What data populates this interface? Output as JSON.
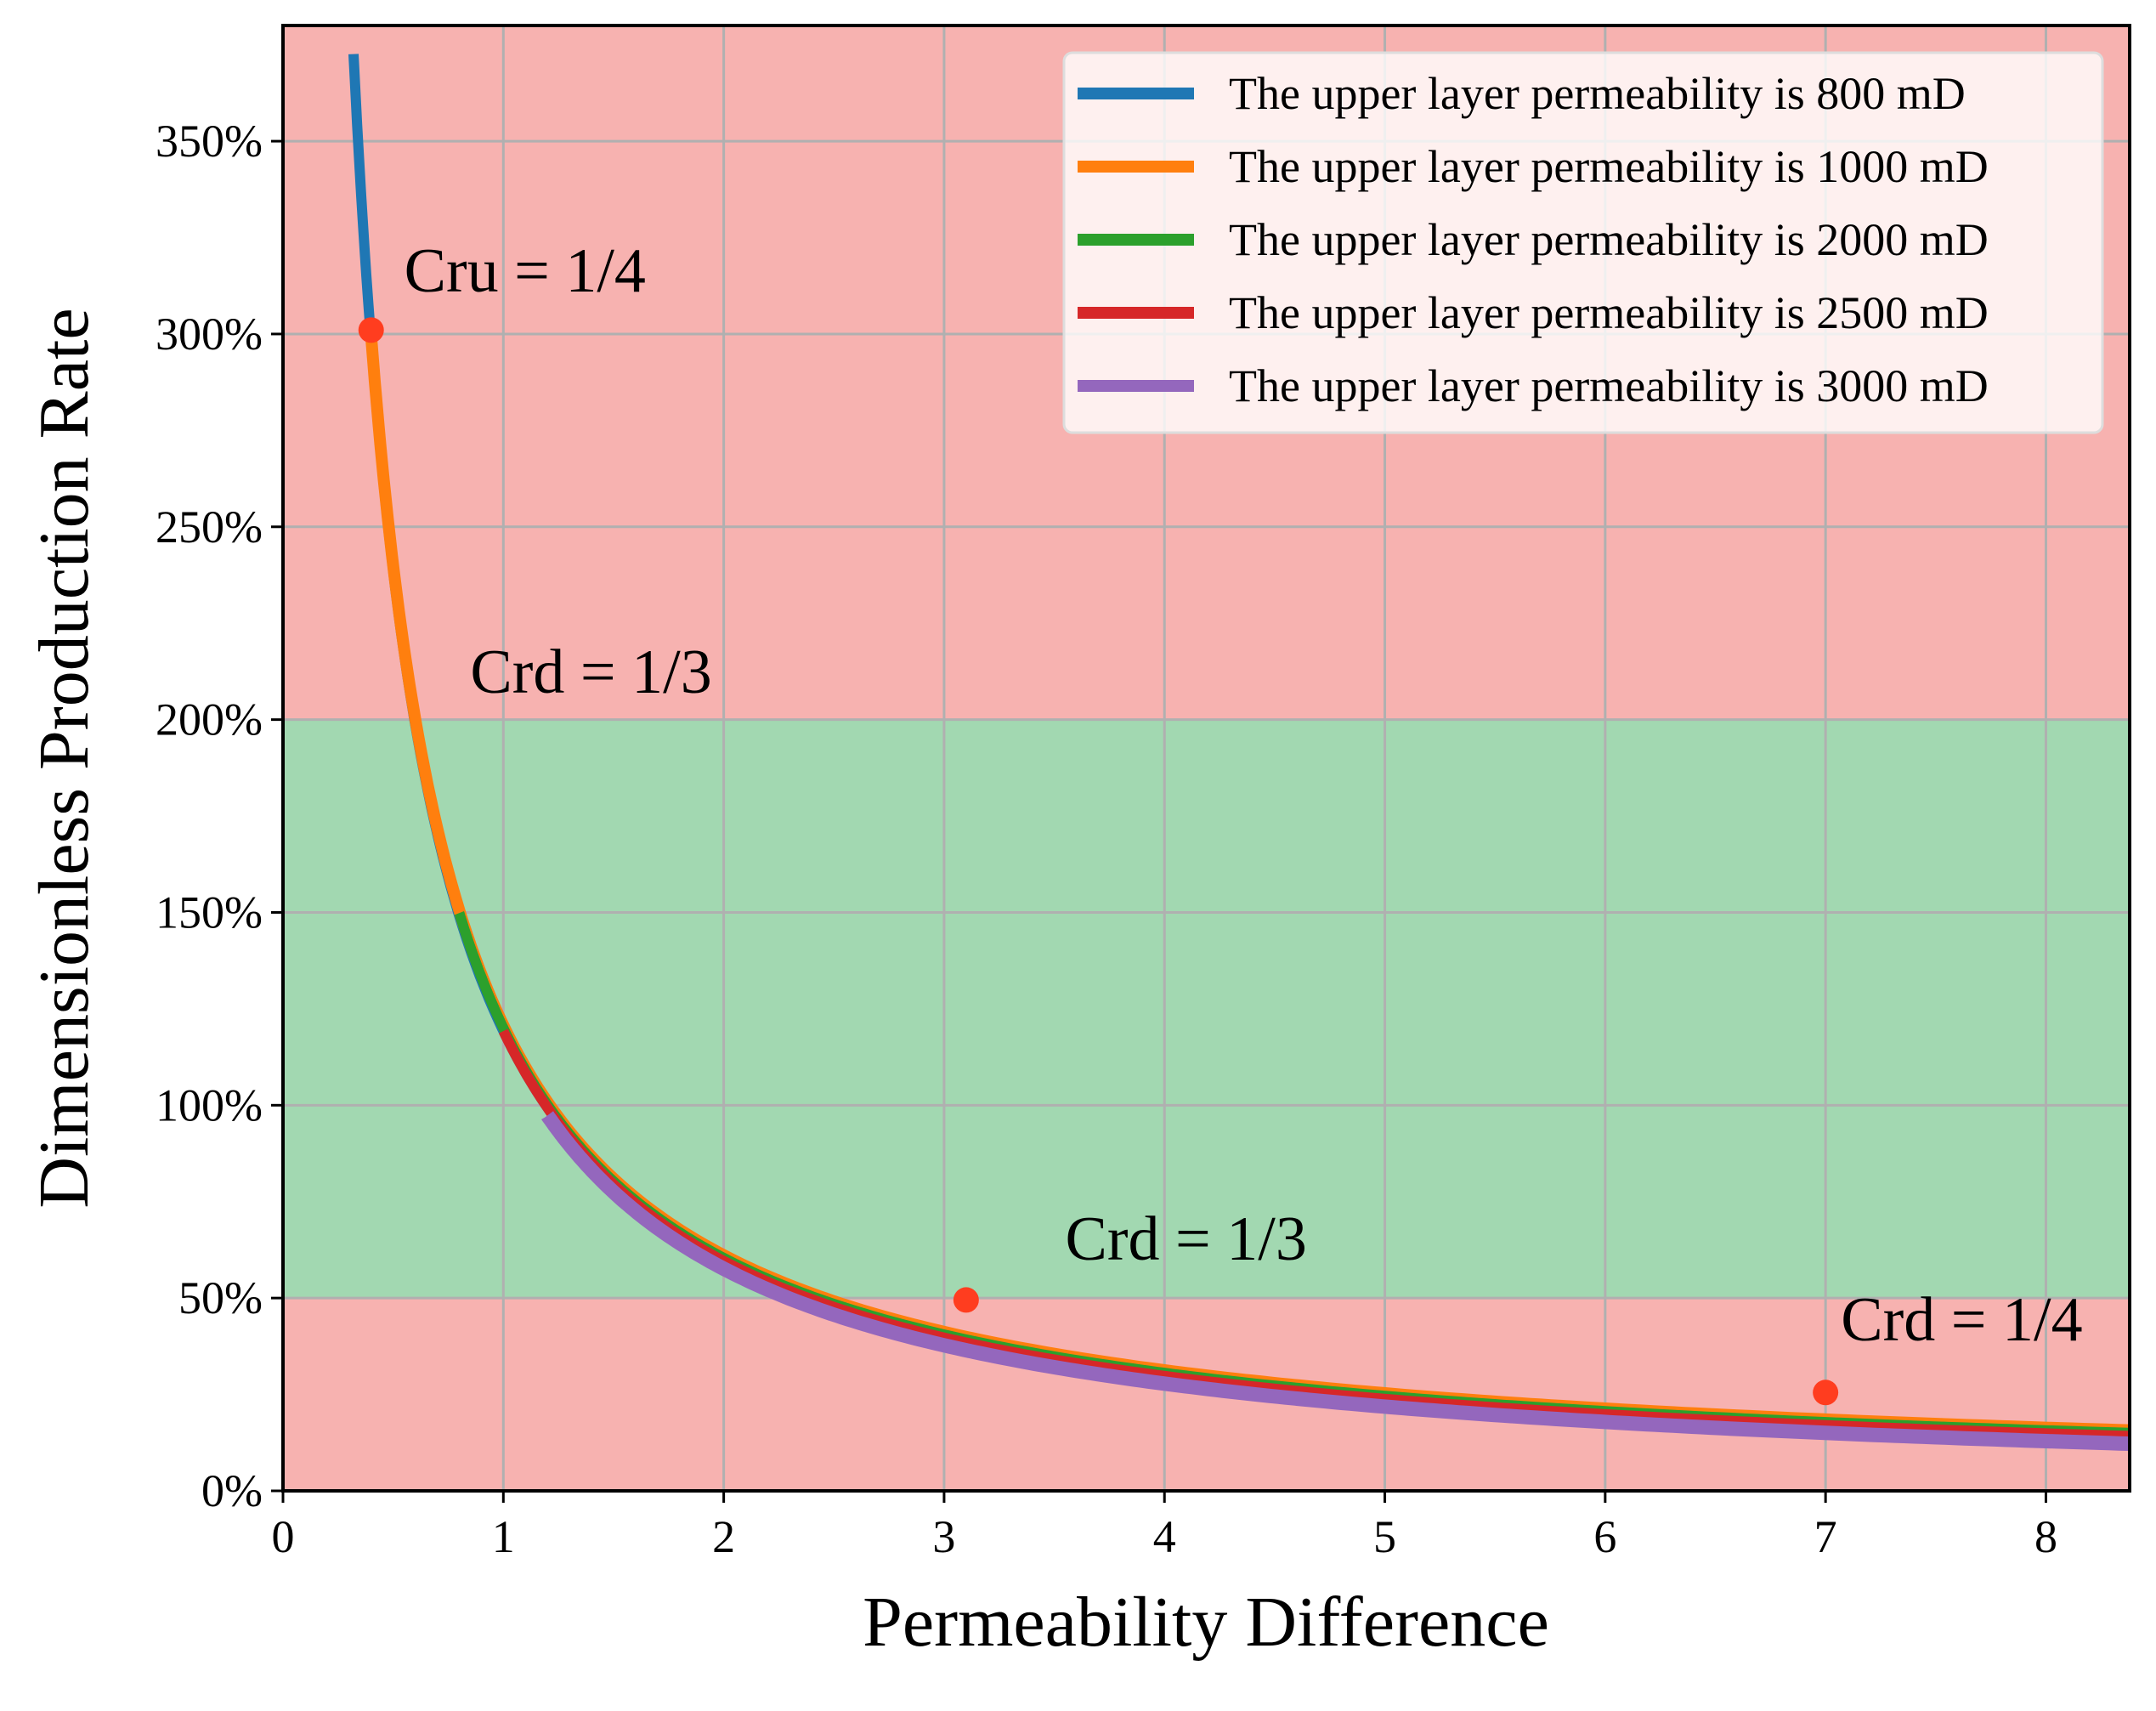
{
  "chart_data": {
    "type": "line",
    "title": "",
    "xlabel": "Permeability Difference",
    "ylabel": "Dimensionless Production Rate",
    "xlim": [
      0,
      8.38
    ],
    "ylim": [
      0,
      380
    ],
    "x_ticks": [
      0,
      1,
      2,
      3,
      4,
      5,
      6,
      7,
      8
    ],
    "x_tick_labels": [
      "0",
      "1",
      "2",
      "3",
      "4",
      "5",
      "6",
      "7",
      "8"
    ],
    "y_ticks": [
      0,
      50,
      100,
      150,
      200,
      250,
      300,
      350
    ],
    "y_tick_labels": [
      "0%",
      "50%",
      "100%",
      "150%",
      "200%",
      "250%",
      "300%",
      "350%"
    ],
    "grid": true,
    "legend_position": "top-right",
    "background_bands": [
      {
        "y_from": 200,
        "y_to": 380,
        "color": "#f7b2b0"
      },
      {
        "y_from": 50,
        "y_to": 200,
        "color": "#a2d8b1"
      },
      {
        "y_from": 0,
        "y_to": 50,
        "color": "#f7b2b0"
      }
    ],
    "series": [
      {
        "name": "The upper layer permeability is 800 mD",
        "color": "#1f77b4",
        "x_range": [
          0.32,
          8.38
        ],
        "curve_k": 1.55,
        "y_offset": 0
      },
      {
        "name": "The upper layer permeability is 1000 mD",
        "color": "#ff7f0e",
        "x_range": [
          0.4,
          8.38
        ],
        "curve_k": 1.55,
        "y_offset": 1.5
      },
      {
        "name": "The upper layer permeability is 2000 mD",
        "color": "#2ca02c",
        "x_range": [
          0.8,
          8.38
        ],
        "curve_k": 1.55,
        "y_offset": 0.8
      },
      {
        "name": "The upper layer permeability is 2500 mD",
        "color": "#d62728",
        "x_range": [
          1.0,
          8.38
        ],
        "curve_k": 1.55,
        "y_offset": 0
      },
      {
        "name": "The upper layer permeability is 3000 mD",
        "color": "#9467bd",
        "x_range": [
          1.2,
          8.38
        ],
        "curve_k": 1.55,
        "y_offset": -2
      }
    ],
    "markers": [
      {
        "x": 0.4,
        "y": 301,
        "color": "#ff3d1f"
      },
      {
        "x": 3.1,
        "y": 49.5,
        "color": "#ff3d1f"
      },
      {
        "x": 7.0,
        "y": 25.5,
        "color": "#ff3d1f"
      }
    ],
    "annotations": [
      {
        "text": "Cru = 1/4",
        "x": 0.55,
        "y": 311
      },
      {
        "text": "Crd = 1/3",
        "x": 0.85,
        "y": 207
      },
      {
        "text": "Crd = 1/3",
        "x": 3.55,
        "y": 60
      },
      {
        "text": "Crd = 1/4",
        "x": 7.07,
        "y": 39
      }
    ]
  }
}
